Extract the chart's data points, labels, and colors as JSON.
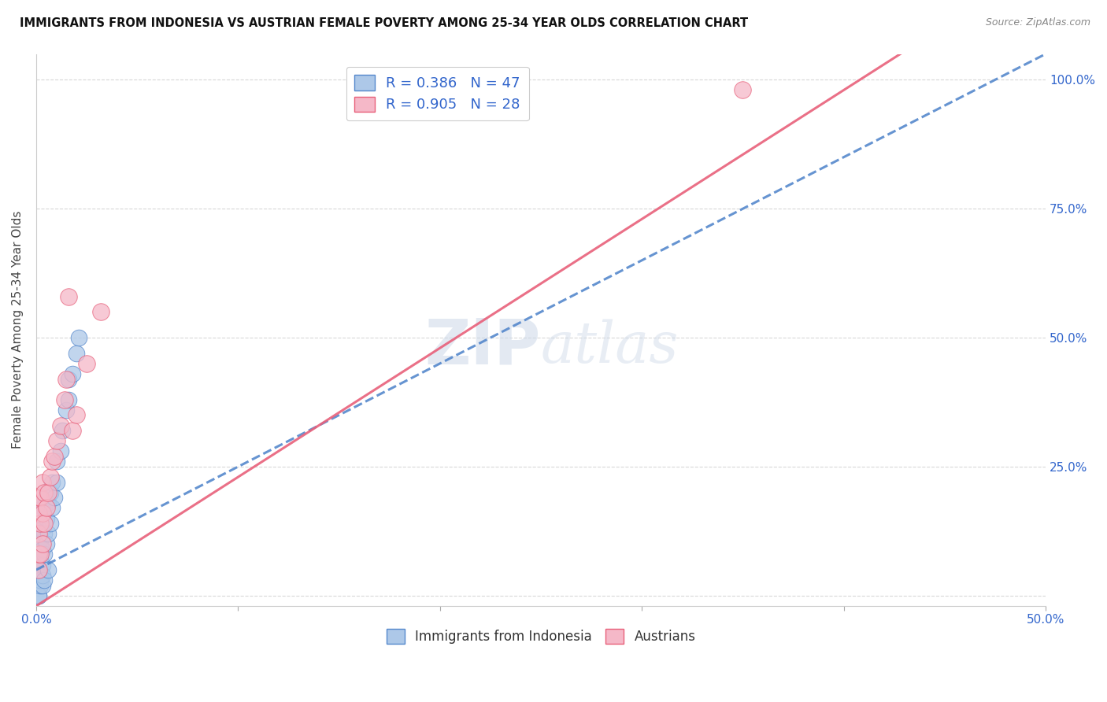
{
  "title": "IMMIGRANTS FROM INDONESIA VS AUSTRIAN FEMALE POVERTY AMONG 25-34 YEAR OLDS CORRELATION CHART",
  "source": "Source: ZipAtlas.com",
  "ylabel": "Female Poverty Among 25-34 Year Olds",
  "legend_label1": "Immigrants from Indonesia",
  "legend_label2": "Austrians",
  "R1": "0.386",
  "N1": "47",
  "R2": "0.905",
  "N2": "28",
  "color_blue": "#adc8e8",
  "color_blue_dark": "#5588cc",
  "color_pink": "#f5b8c8",
  "color_pink_dark": "#e8607a",
  "xlim": [
    0.0,
    0.5
  ],
  "ylim": [
    -0.02,
    1.05
  ],
  "xtick_positions": [
    0.0,
    0.1,
    0.2,
    0.3,
    0.4,
    0.5
  ],
  "xtick_labels_show": [
    "0.0%",
    "",
    "",
    "",
    "",
    "50.0%"
  ],
  "ytick_positions": [
    0.0,
    0.25,
    0.5,
    0.75,
    1.0
  ],
  "blue_line_slope": 2.0,
  "blue_line_intercept": 0.05,
  "pink_line_slope": 2.5,
  "pink_line_intercept": -0.02,
  "blue_scatter_x": [
    0.001,
    0.001,
    0.001,
    0.001,
    0.002,
    0.002,
    0.002,
    0.002,
    0.002,
    0.003,
    0.003,
    0.003,
    0.003,
    0.004,
    0.004,
    0.004,
    0.005,
    0.005,
    0.005,
    0.006,
    0.006,
    0.007,
    0.007,
    0.008,
    0.008,
    0.009,
    0.01,
    0.01,
    0.012,
    0.013,
    0.015,
    0.016,
    0.016,
    0.018,
    0.02,
    0.021,
    0.001,
    0.001,
    0.001,
    0.001,
    0.001,
    0.002,
    0.002,
    0.003,
    0.003,
    0.004,
    0.006
  ],
  "blue_scatter_y": [
    0.05,
    0.07,
    0.1,
    0.13,
    0.04,
    0.07,
    0.1,
    0.14,
    0.18,
    0.06,
    0.09,
    0.13,
    0.17,
    0.08,
    0.12,
    0.17,
    0.1,
    0.15,
    0.2,
    0.12,
    0.18,
    0.14,
    0.2,
    0.17,
    0.22,
    0.19,
    0.22,
    0.26,
    0.28,
    0.32,
    0.36,
    0.38,
    0.42,
    0.43,
    0.47,
    0.5,
    0.02,
    0.03,
    0.04,
    0.0,
    0.0,
    0.02,
    0.03,
    0.02,
    0.04,
    0.03,
    0.05
  ],
  "pink_scatter_x": [
    0.001,
    0.001,
    0.001,
    0.001,
    0.001,
    0.002,
    0.002,
    0.002,
    0.003,
    0.003,
    0.003,
    0.004,
    0.004,
    0.005,
    0.006,
    0.007,
    0.008,
    0.009,
    0.01,
    0.012,
    0.014,
    0.015,
    0.016,
    0.018,
    0.02,
    0.025,
    0.032,
    0.35
  ],
  "pink_scatter_y": [
    0.05,
    0.08,
    0.12,
    0.16,
    0.19,
    0.08,
    0.14,
    0.19,
    0.1,
    0.16,
    0.22,
    0.14,
    0.2,
    0.17,
    0.2,
    0.23,
    0.26,
    0.27,
    0.3,
    0.33,
    0.38,
    0.42,
    0.58,
    0.32,
    0.35,
    0.45,
    0.55,
    0.98
  ]
}
